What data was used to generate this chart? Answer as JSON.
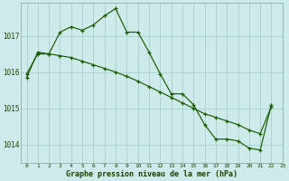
{
  "title": "Graphe pression niveau de la mer (hPa)",
  "background_color": "#ceeaea",
  "grid_color": "#aacece",
  "line_color": "#1a5c00",
  "xlim": [
    -0.5,
    23
  ],
  "ylim": [
    1013.5,
    1017.9
  ],
  "yticks": [
    1014,
    1015,
    1016,
    1017
  ],
  "xticks": [
    0,
    1,
    2,
    3,
    4,
    5,
    6,
    7,
    8,
    9,
    10,
    11,
    12,
    13,
    14,
    15,
    16,
    17,
    18,
    19,
    20,
    21,
    22,
    23
  ],
  "series1_x": [
    0,
    1,
    2,
    3,
    4,
    5,
    6,
    7,
    8,
    9,
    10,
    11,
    12,
    13,
    14,
    15,
    16,
    17,
    18,
    19,
    20,
    21,
    22
  ],
  "series1_y": [
    1015.85,
    1016.55,
    1016.5,
    1017.1,
    1017.25,
    1017.15,
    1017.3,
    1017.55,
    1017.75,
    1017.1,
    1017.1,
    1016.55,
    1015.95,
    1015.4,
    1015.4,
    1015.1,
    1014.55,
    1014.15,
    1014.15,
    1014.1,
    1013.9,
    1013.85,
    1015.1
  ],
  "series2_x": [
    0,
    1,
    2,
    3,
    4,
    5,
    6,
    7,
    8,
    9,
    10,
    11,
    12,
    13,
    14,
    15,
    16,
    17,
    18,
    19,
    20,
    21,
    22
  ],
  "series2_y": [
    1015.95,
    1016.5,
    1016.5,
    1016.45,
    1016.4,
    1016.3,
    1016.2,
    1016.1,
    1016.0,
    1015.88,
    1015.75,
    1015.6,
    1015.45,
    1015.3,
    1015.15,
    1015.0,
    1014.85,
    1014.75,
    1014.65,
    1014.55,
    1014.4,
    1014.3,
    1015.05
  ]
}
